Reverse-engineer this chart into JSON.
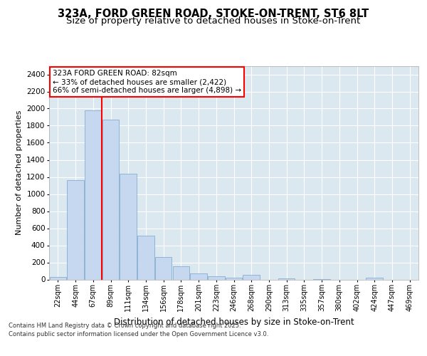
{
  "title": "323A, FORD GREEN ROAD, STOKE-ON-TRENT, ST6 8LT",
  "subtitle": "Size of property relative to detached houses in Stoke-on-Trent",
  "xlabel": "Distribution of detached houses by size in Stoke-on-Trent",
  "ylabel": "Number of detached properties",
  "categories": [
    "22sqm",
    "44sqm",
    "67sqm",
    "89sqm",
    "111sqm",
    "134sqm",
    "156sqm",
    "178sqm",
    "201sqm",
    "223sqm",
    "246sqm",
    "268sqm",
    "290sqm",
    "313sqm",
    "335sqm",
    "357sqm",
    "380sqm",
    "402sqm",
    "424sqm",
    "447sqm",
    "469sqm"
  ],
  "values": [
    30,
    1160,
    1980,
    1870,
    1240,
    510,
    265,
    155,
    70,
    40,
    25,
    55,
    0,
    15,
    0,
    5,
    0,
    0,
    20,
    0,
    0
  ],
  "bar_color": "#c5d8ef",
  "bar_edge_color": "#85afd0",
  "vline_x": 3.0,
  "vline_color": "red",
  "annotation_text": "323A FORD GREEN ROAD: 82sqm\n← 33% of detached houses are smaller (2,422)\n66% of semi-detached houses are larger (4,898) →",
  "annotation_box_color": "white",
  "annotation_box_edge_color": "red",
  "ylim": [
    0,
    2500
  ],
  "yticks": [
    0,
    200,
    400,
    600,
    800,
    1000,
    1200,
    1400,
    1600,
    1800,
    2000,
    2200,
    2400
  ],
  "background_color": "#dce8f0",
  "plot_bg_color": "#dce8f0",
  "footer_line1": "Contains HM Land Registry data © Crown copyright and database right 2025.",
  "footer_line2": "Contains public sector information licensed under the Open Government Licence v3.0.",
  "title_fontsize": 10.5,
  "subtitle_fontsize": 9.5
}
